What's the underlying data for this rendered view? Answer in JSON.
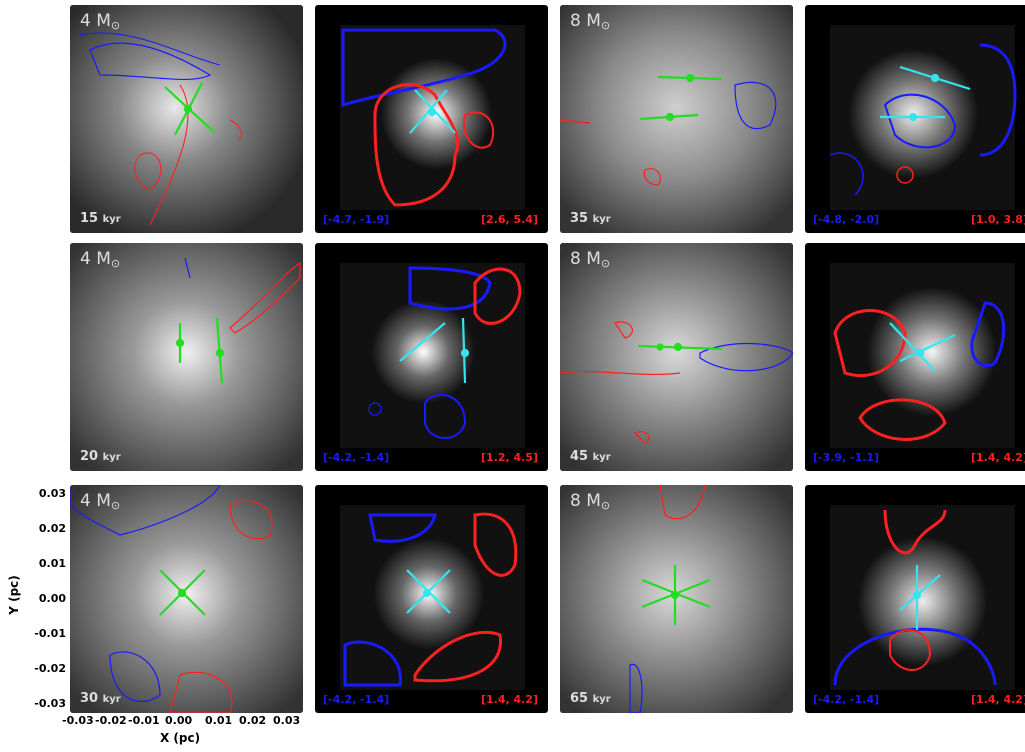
{
  "panels": [
    {
      "mass": "4 M",
      "time": "15",
      "unit": "kyr"
    },
    {
      "vrange_blue": "[-4.7, -1.9]",
      "vrange_red": "[2.6, 5.4]"
    },
    {
      "mass": "8 M",
      "time": "35",
      "unit": "kyr"
    },
    {
      "vrange_blue": "[-4.8, -2.0]",
      "vrange_red": "[1.0, 3.8]"
    },
    {
      "mass": "4 M",
      "time": "20",
      "unit": "kyr"
    },
    {
      "vrange_blue": "[-4.2, -1.4]",
      "vrange_red": "[1.2, 4.5]"
    },
    {
      "mass": "8 M",
      "time": "45",
      "unit": "kyr"
    },
    {
      "vrange_blue": "[-3.9, -1.1]",
      "vrange_red": "[1.4, 4.2]"
    },
    {
      "mass": "4 M",
      "time": "30",
      "unit": "kyr"
    },
    {
      "vrange_blue": "[-4.2, -1.4]",
      "vrange_red": "[1.4, 4.2]"
    },
    {
      "mass": "8 M",
      "time": "65",
      "unit": "kyr"
    },
    {
      "vrange_blue": "[-4.2, -1.4]",
      "vrange_red": "[1.4, 4.2]"
    }
  ],
  "sun_symbol": "⊙",
  "axes": {
    "ylabel": "Y (pc)",
    "xlabel": "X (pc)",
    "yticks": [
      "0.03",
      "0.02",
      "0.01",
      "0.00",
      "-0.01",
      "-0.02",
      "-0.03"
    ],
    "xticks": [
      "-0.03",
      "-0.02",
      "-0.01",
      "0.00",
      "0.01",
      "0.02",
      "0.03"
    ]
  },
  "colors": {
    "blue_contour": "#1a1aff",
    "red_contour": "#ff2020",
    "green_arrow": "#22dd22",
    "cyan_arrow": "#33e5ee",
    "background": "#000000"
  }
}
